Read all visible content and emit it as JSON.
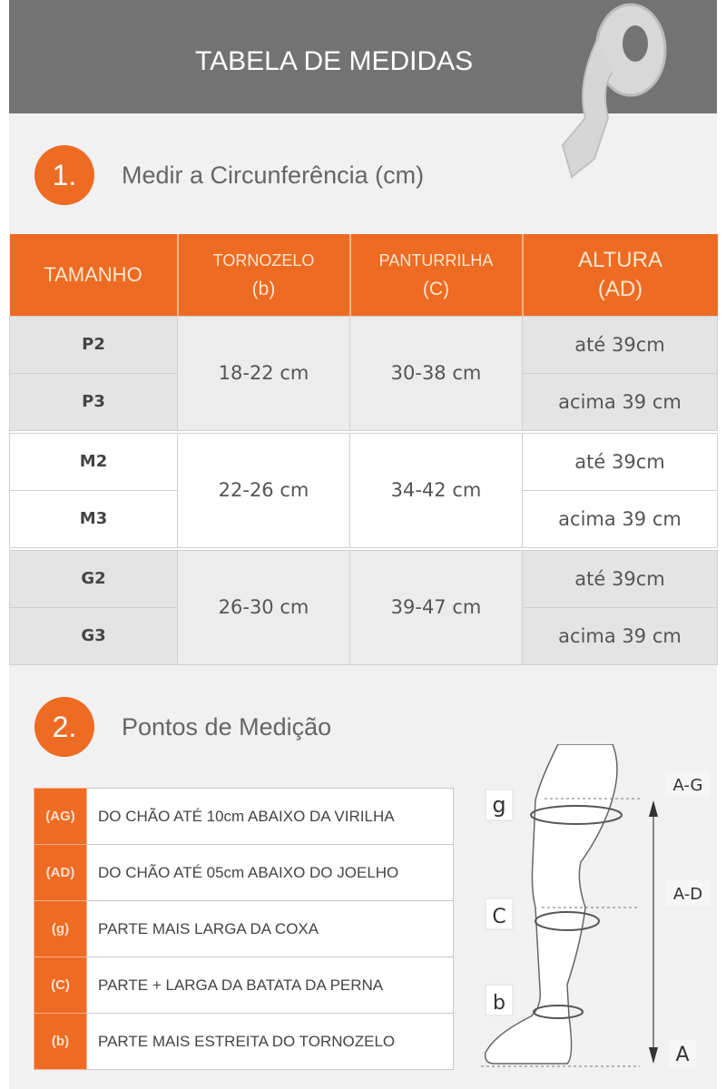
{
  "header": {
    "title": "TABELA DE MEDIDAS",
    "icon": "measuring-tape-icon"
  },
  "section1": {
    "number": "1.",
    "title": "Medir a Circunferência (cm)"
  },
  "table": {
    "headers": [
      {
        "line1": "TAMANHO",
        "line2": ""
      },
      {
        "line1": "TORNOZELO",
        "line2": "(b)"
      },
      {
        "line1": "PANTURRILHA",
        "line2": "(C)"
      },
      {
        "line1": "ALTURA",
        "line2": "(AD)"
      }
    ],
    "groups": [
      {
        "tornozelo": "18-22 cm",
        "panturrilha": "30-38 cm",
        "rows": [
          {
            "size": "P2",
            "altura": "até 39cm"
          },
          {
            "size": "P3",
            "altura": "acima 39 cm"
          }
        ]
      },
      {
        "tornozelo": "22-26 cm",
        "panturrilha": "34-42 cm",
        "rows": [
          {
            "size": "M2",
            "altura": "até 39cm"
          },
          {
            "size": "M3",
            "altura": "acima 39 cm"
          }
        ]
      },
      {
        "tornozelo": "26-30 cm",
        "panturrilha": "39-47 cm",
        "rows": [
          {
            "size": "G2",
            "altura": "até 39cm"
          },
          {
            "size": "G3",
            "altura": "acima 39 cm"
          }
        ]
      }
    ]
  },
  "section2": {
    "number": "2.",
    "title": "Pontos de Medição"
  },
  "legend": [
    {
      "key": "(AG)",
      "text": "DO CHÃO ATÉ 10cm ABAIXO DA VIRILHA"
    },
    {
      "key": "(AD)",
      "text": "DO CHÃO ATÉ 05cm ABAIXO DO JOELHO"
    },
    {
      "key": "(g)",
      "text": "PARTE MAIS LARGA DA COXA"
    },
    {
      "key": "(C)",
      "text": "PARTE + LARGA DA BATATA DA PERNA"
    },
    {
      "key": "(b)",
      "text": "PARTE MAIS ESTREITA DO TORNOZELO"
    }
  ],
  "diagram": {
    "g": "g",
    "c": "C",
    "b": "b",
    "ag": "A-G",
    "ad": "A-D",
    "a": "A"
  },
  "colors": {
    "accent": "#ee6b23",
    "header": "#737373"
  }
}
